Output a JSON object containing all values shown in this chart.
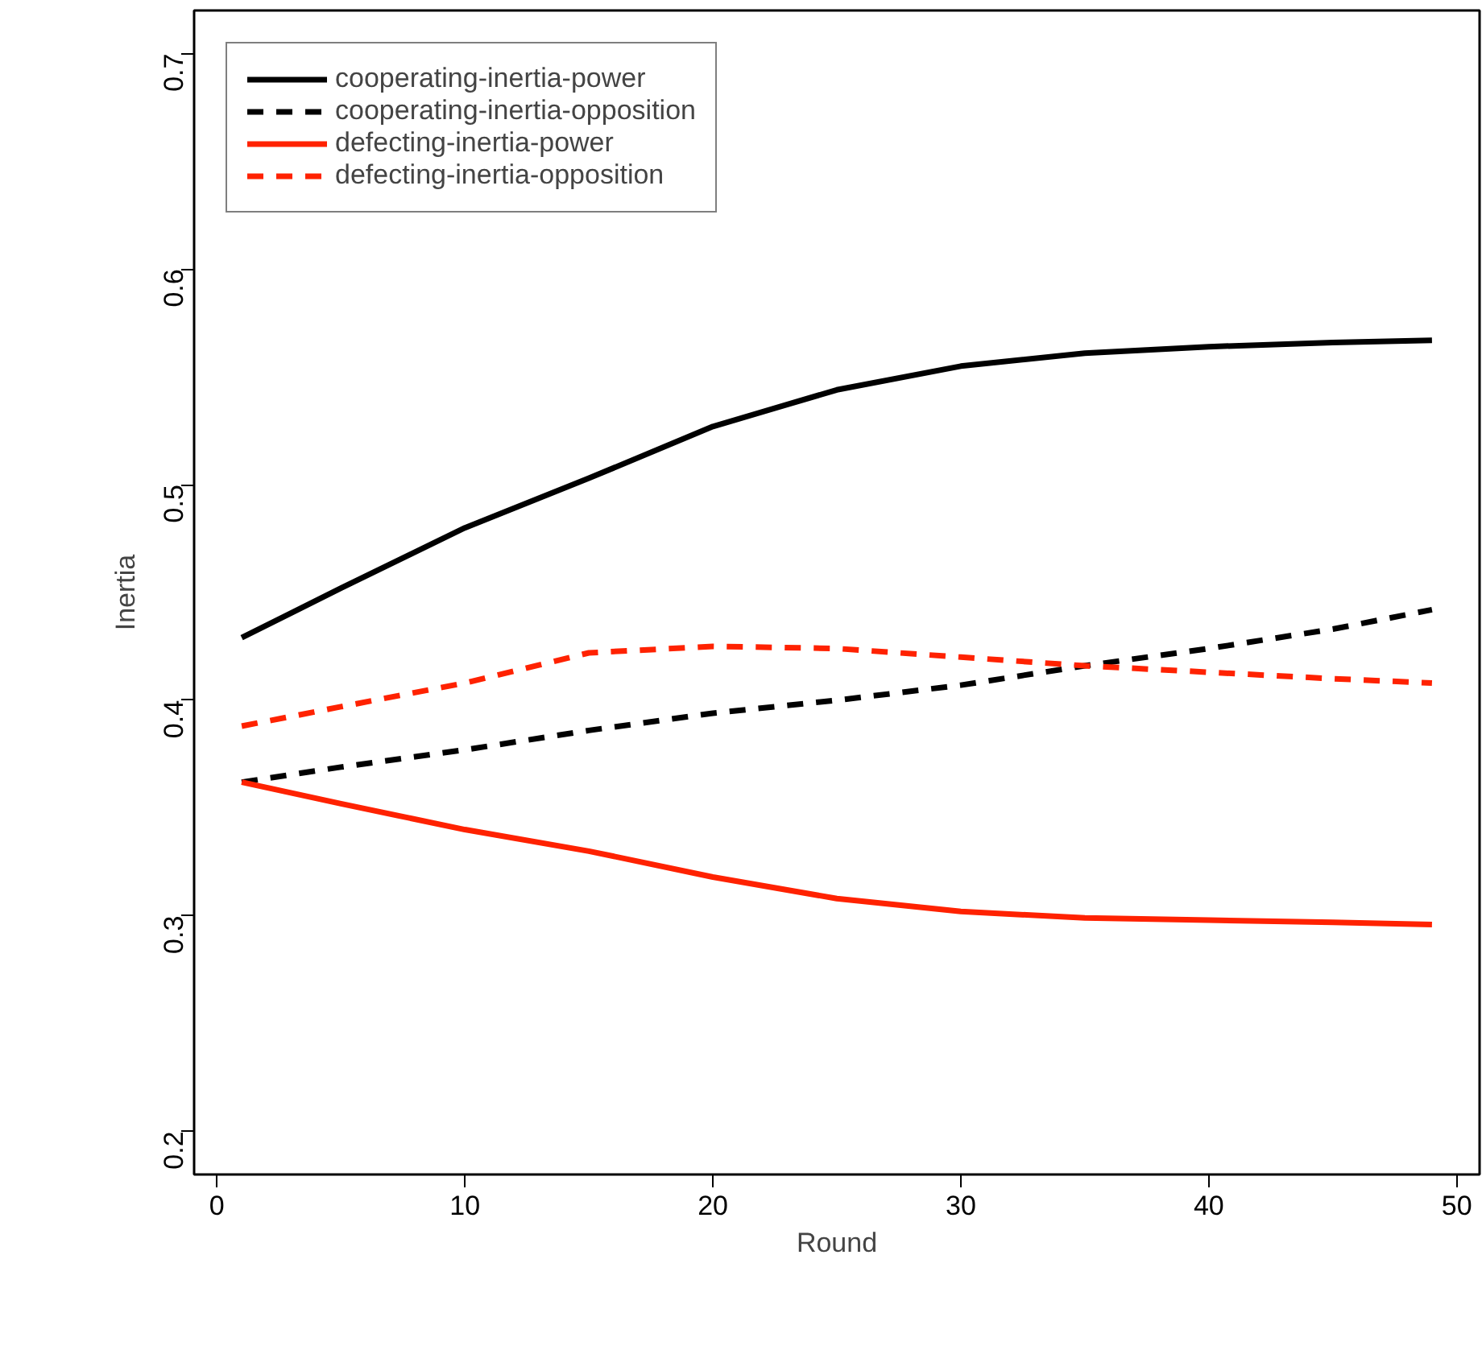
{
  "chart_data": {
    "type": "line",
    "xlabel": "Round",
    "ylabel": "Inertia",
    "x": [
      1,
      5,
      10,
      15,
      20,
      25,
      30,
      35,
      40,
      45,
      49
    ],
    "series": [
      {
        "name": "cooperating-inertia-power",
        "color": "#000000",
        "line_style": "solid",
        "values": [
          0.429,
          0.452,
          0.48,
          0.503,
          0.527,
          0.544,
          0.555,
          0.561,
          0.564,
          0.566,
          0.567
        ]
      },
      {
        "name": "cooperating-inertia-opposition",
        "color": "#000000",
        "line_style": "dashed",
        "values": [
          0.362,
          0.369,
          0.377,
          0.386,
          0.394,
          0.4,
          0.407,
          0.416,
          0.424,
          0.433,
          0.442
        ]
      },
      {
        "name": "defecting-inertia-power",
        "color": "#ff2200",
        "line_style": "solid",
        "values": [
          0.362,
          0.352,
          0.34,
          0.33,
          0.318,
          0.308,
          0.302,
          0.299,
          0.298,
          0.297,
          0.296
        ]
      },
      {
        "name": "defecting-inertia-opposition",
        "color": "#ff2200",
        "line_style": "dashed",
        "values": [
          0.388,
          0.397,
          0.408,
          0.422,
          0.425,
          0.424,
          0.42,
          0.416,
          0.413,
          0.41,
          0.408
        ]
      }
    ],
    "xlim": [
      -0.92,
      50.92
    ],
    "ylim": [
      0.18,
      0.72
    ],
    "xticks": [
      0,
      10,
      20,
      30,
      40,
      50
    ],
    "yticks": [
      0.2,
      0.3,
      0.4,
      0.5,
      0.6,
      0.7
    ],
    "grid": false,
    "legend": "top left",
    "marker": "none"
  }
}
